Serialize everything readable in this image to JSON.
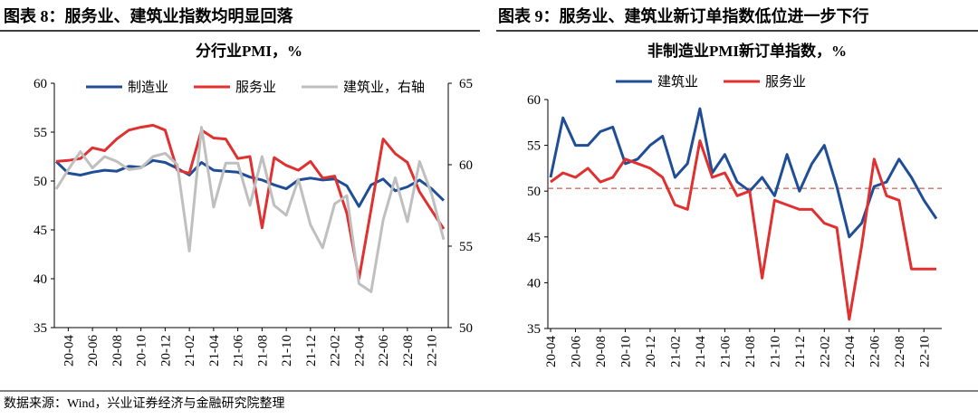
{
  "chart_data": [
    {
      "type": "line",
      "heading": "图表 8：服务业、建筑业指数均明显回落",
      "title": "分行业PMI，%",
      "categories": [
        null,
        "20-04",
        null,
        "20-06",
        null,
        "20-08",
        null,
        "20-10",
        null,
        "20-12",
        null,
        "21-02",
        null,
        "21-04",
        null,
        "21-06",
        null,
        "21-08",
        null,
        "21-10",
        null,
        "21-12",
        null,
        "22-02",
        null,
        "22-04",
        null,
        "22-06",
        null,
        "22-08",
        null,
        "22-10",
        null
      ],
      "ylim": [
        35,
        60
      ],
      "yticks": [
        35,
        40,
        45,
        50,
        55,
        60
      ],
      "y2lim": [
        50,
        65
      ],
      "y2ticks": [
        50,
        55,
        60,
        65
      ],
      "series": [
        {
          "name": "制造业",
          "color": "#1f4e96",
          "values": [
            52.0,
            50.8,
            50.6,
            50.9,
            51.1,
            51.0,
            51.5,
            51.4,
            52.1,
            51.9,
            51.3,
            50.6,
            51.9,
            51.1,
            51.0,
            50.9,
            50.4,
            50.1,
            49.6,
            49.2,
            50.1,
            50.3,
            50.1,
            50.2,
            49.5,
            47.4,
            49.6,
            50.2,
            49.0,
            49.4,
            50.1,
            49.2,
            48.0
          ]
        },
        {
          "name": "服务业",
          "color": "#e03030",
          "values": [
            52.0,
            52.1,
            52.3,
            53.4,
            53.1,
            54.3,
            55.2,
            55.5,
            55.7,
            55.2,
            51.1,
            50.8,
            55.2,
            54.4,
            54.3,
            52.3,
            52.5,
            45.2,
            52.4,
            51.6,
            51.1,
            52.0,
            50.3,
            50.5,
            46.7,
            40.0,
            47.1,
            54.3,
            52.8,
            51.9,
            48.9,
            47.0,
            45.1
          ]
        },
        {
          "name": "建筑业，右轴",
          "color": "#bfbfbf",
          "axis": "y2",
          "values": [
            58.5,
            59.7,
            60.8,
            59.8,
            60.5,
            60.2,
            59.7,
            59.8,
            60.5,
            60.7,
            60.0,
            54.7,
            62.3,
            57.4,
            60.1,
            60.1,
            57.5,
            60.5,
            57.5,
            56.9,
            59.1,
            56.3,
            54.9,
            57.6,
            58.1,
            52.7,
            52.2,
            56.6,
            59.2,
            56.5,
            60.2,
            58.2,
            55.4
          ]
        }
      ]
    },
    {
      "type": "line",
      "heading": "图表 9：服务业、建筑业新订单指数低位进一步下行",
      "title": "非制造业PMI新订单指数，%",
      "categories": [
        "20-04",
        null,
        "20-06",
        null,
        "20-08",
        null,
        "20-10",
        null,
        "20-12",
        null,
        "21-02",
        null,
        "21-04",
        null,
        "21-06",
        null,
        "21-08",
        null,
        "21-10",
        null,
        "21-12",
        null,
        "22-02",
        null,
        "22-04",
        null,
        "22-06",
        null,
        "22-08",
        null,
        "22-10",
        null
      ],
      "ylim": [
        35,
        60
      ],
      "yticks": [
        35,
        40,
        45,
        50,
        55,
        60
      ],
      "reference_y": 50.3,
      "reference_color": "#c0392b",
      "series": [
        {
          "name": "建筑业",
          "color": "#1f4e96",
          "values": [
            51.5,
            58.0,
            55.0,
            55.0,
            56.5,
            57.0,
            53.0,
            53.5,
            55.0,
            56.0,
            51.5,
            53.0,
            59.0,
            52.0,
            54.0,
            51.0,
            50.0,
            51.5,
            49.5,
            54.0,
            50.0,
            53.0,
            55.0,
            50.5,
            45.0,
            46.5,
            50.5,
            51.0,
            53.5,
            51.5,
            49.0,
            47.0
          ]
        },
        {
          "name": "服务业",
          "color": "#e03030",
          "values": [
            51.0,
            52.0,
            51.5,
            52.5,
            51.0,
            51.5,
            53.5,
            53.0,
            52.5,
            51.5,
            48.5,
            48.0,
            55.5,
            51.5,
            52.0,
            49.5,
            50.0,
            40.5,
            49.0,
            48.5,
            48.0,
            48.0,
            46.5,
            46.0,
            36.0,
            44.0,
            53.5,
            49.5,
            49.0,
            41.5,
            41.5,
            41.5
          ]
        }
      ]
    }
  ],
  "source": "数据来源：Wind，兴业证券经济与金融研究院整理"
}
